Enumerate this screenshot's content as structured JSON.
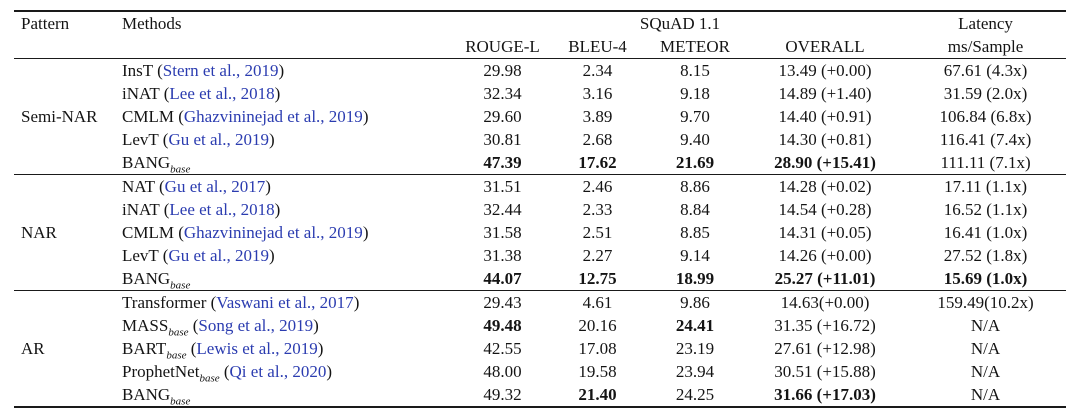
{
  "colors": {
    "citation": "#2b3cb0",
    "text": "#141414"
  },
  "table": {
    "header": {
      "pattern": "Pattern",
      "methods": "Methods",
      "group_title": "SQuAD 1.1",
      "metric_cols": [
        "ROUGE-L",
        "BLEU-4",
        "METEOR",
        "OVERALL"
      ],
      "metric_keys": [
        "rouge-l",
        "bleu-4",
        "meteor",
        "overall",
        "latency"
      ],
      "latency_line1": "Latency",
      "latency_line2": "ms/Sample"
    },
    "groups": [
      {
        "pattern": "Semi-NAR",
        "rows": [
          {
            "method": "InsT",
            "subscript": "",
            "citation": "Stern et al., 2019",
            "values": [
              "29.98",
              "2.34",
              "8.15",
              "13.49 (+0.00)",
              "67.61 (4.3x)"
            ],
            "bold": [
              false,
              false,
              false,
              false,
              false
            ]
          },
          {
            "method": "iNAT",
            "subscript": "",
            "citation": "Lee et al., 2018",
            "values": [
              "32.34",
              "3.16",
              "9.18",
              "14.89 (+1.40)",
              "31.59 (2.0x)"
            ],
            "bold": [
              false,
              false,
              false,
              false,
              false
            ]
          },
          {
            "method": "CMLM",
            "subscript": "",
            "citation": "Ghazvininejad et al., 2019",
            "values": [
              "29.60",
              "3.89",
              "9.70",
              "14.40 (+0.91)",
              "106.84 (6.8x)"
            ],
            "bold": [
              false,
              false,
              false,
              false,
              false
            ]
          },
          {
            "method": "LevT",
            "subscript": "",
            "citation": "Gu et al., 2019",
            "values": [
              "30.81",
              "2.68",
              "9.40",
              "14.30 (+0.81)",
              "116.41 (7.4x)"
            ],
            "bold": [
              false,
              false,
              false,
              false,
              false
            ]
          },
          {
            "method": "BANG",
            "subscript": "base",
            "citation": "",
            "values": [
              "47.39",
              "17.62",
              "21.69",
              "28.90 (+15.41)",
              "111.11 (7.1x)"
            ],
            "bold": [
              true,
              true,
              true,
              true,
              false
            ]
          }
        ]
      },
      {
        "pattern": "NAR",
        "rows": [
          {
            "method": "NAT",
            "subscript": "",
            "citation": "Gu et al., 2017",
            "values": [
              "31.51",
              "2.46",
              "8.86",
              "14.28 (+0.02)",
              "17.11 (1.1x)"
            ],
            "bold": [
              false,
              false,
              false,
              false,
              false
            ]
          },
          {
            "method": "iNAT",
            "subscript": "",
            "citation": "Lee et al., 2018",
            "values": [
              "32.44",
              "2.33",
              "8.84",
              "14.54 (+0.28)",
              "16.52 (1.1x)"
            ],
            "bold": [
              false,
              false,
              false,
              false,
              false
            ]
          },
          {
            "method": "CMLM",
            "subscript": "",
            "citation": "Ghazvininejad et al., 2019",
            "values": [
              "31.58",
              "2.51",
              "8.85",
              "14.31 (+0.05)",
              "16.41 (1.0x)"
            ],
            "bold": [
              false,
              false,
              false,
              false,
              false
            ]
          },
          {
            "method": "LevT",
            "subscript": "",
            "citation": "Gu et al., 2019",
            "values": [
              "31.38",
              "2.27",
              "9.14",
              "14.26 (+0.00)",
              "27.52 (1.8x)"
            ],
            "bold": [
              false,
              false,
              false,
              false,
              false
            ]
          },
          {
            "method": "BANG",
            "subscript": "base",
            "citation": "",
            "values": [
              "44.07",
              "12.75",
              "18.99",
              "25.27 (+11.01)",
              "15.69 (1.0x)"
            ],
            "bold": [
              true,
              true,
              true,
              true,
              true
            ]
          }
        ]
      },
      {
        "pattern": "AR",
        "rows": [
          {
            "method": "Transformer",
            "subscript": "",
            "citation": "Vaswani et al., 2017",
            "values": [
              "29.43",
              "4.61",
              "9.86",
              "14.63(+0.00)",
              "159.49(10.2x)"
            ],
            "bold": [
              false,
              false,
              false,
              false,
              false
            ]
          },
          {
            "method": "MASS",
            "subscript": "base",
            "citation": "Song et al., 2019",
            "values": [
              "49.48",
              "20.16",
              "24.41",
              "31.35 (+16.72)",
              "N/A"
            ],
            "bold": [
              true,
              false,
              true,
              false,
              false
            ]
          },
          {
            "method": "BART",
            "subscript": "base",
            "citation": "Lewis et al., 2019",
            "values": [
              "42.55",
              "17.08",
              "23.19",
              "27.61 (+12.98)",
              "N/A"
            ],
            "bold": [
              false,
              false,
              false,
              false,
              false
            ]
          },
          {
            "method": "ProphetNet",
            "subscript": "base",
            "citation": "Qi et al., 2020",
            "values": [
              "48.00",
              "19.58",
              "23.94",
              "30.51 (+15.88)",
              "N/A"
            ],
            "bold": [
              false,
              false,
              false,
              false,
              false
            ]
          },
          {
            "method": "BANG",
            "subscript": "base",
            "citation": "",
            "values": [
              "49.32",
              "21.40",
              "24.25",
              "31.66 (+17.03)",
              "N/A"
            ],
            "bold": [
              false,
              true,
              false,
              true,
              false
            ]
          }
        ]
      }
    ]
  }
}
